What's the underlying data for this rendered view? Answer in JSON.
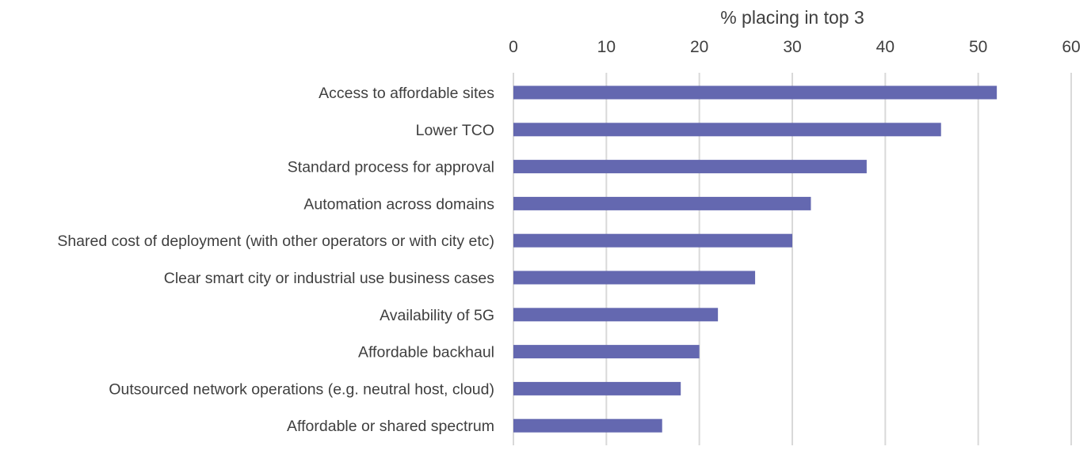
{
  "chart_data": {
    "type": "bar",
    "orientation": "horizontal",
    "xlabel": "% placing in top 3",
    "xaxis_position": "top",
    "xlim": [
      0,
      60
    ],
    "xticks": [
      0,
      10,
      20,
      30,
      40,
      50,
      60
    ],
    "grid": true,
    "legend": "none",
    "bar_color": "#6468b0",
    "categories": [
      "Access to affordable sites",
      "Lower TCO",
      "Standard process for approval",
      "Automation across domains",
      "Shared cost of deployment (with other operators or with city etc)",
      "Clear smart city or industrial use business cases",
      "Availability of 5G",
      "Affordable backhaul",
      "Outsourced network operations (e.g. neutral host, cloud)",
      "Affordable or shared spectrum"
    ],
    "values": [
      52,
      46,
      38,
      32,
      30,
      26,
      22,
      20,
      18,
      16
    ]
  }
}
